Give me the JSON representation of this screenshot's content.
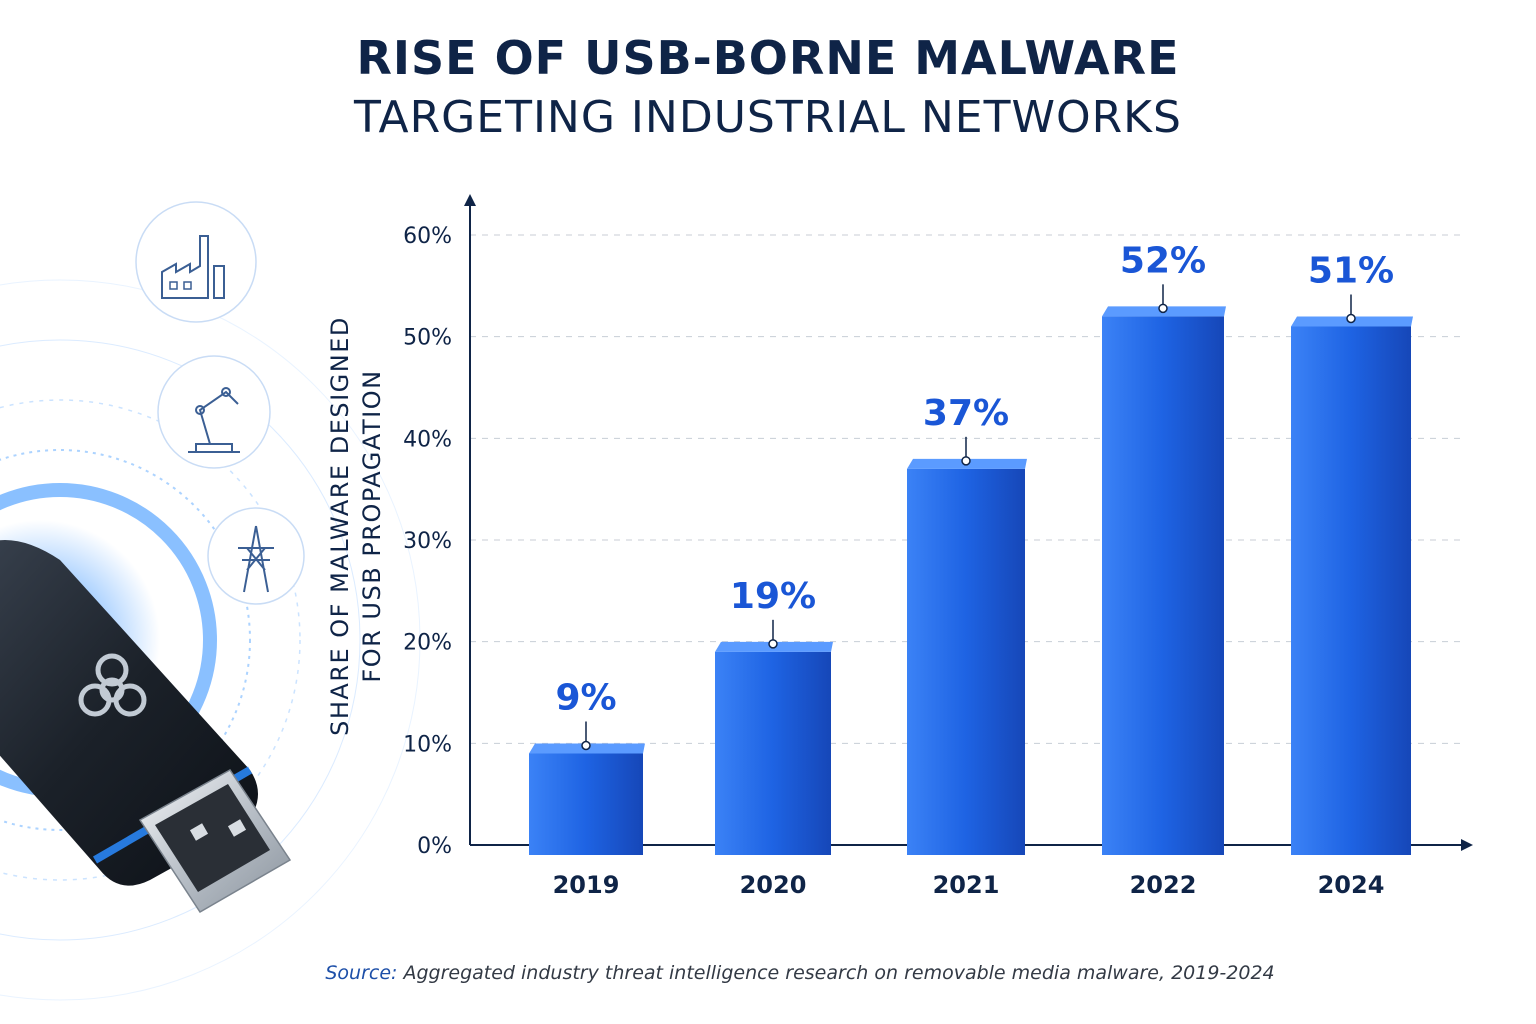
{
  "title_line1": "RISE OF USB-BORNE MALWARE",
  "title_line2": "TARGETING INDUSTRIAL NETWORKS",
  "source_label": "Source:",
  "source_text": "Aggregated industry threat intelligence research on removable media malware, 2019-2024",
  "icons": [
    "factory-icon",
    "robot-arm-icon",
    "power-tower-icon",
    "usb-drive-icon",
    "biohazard-icon"
  ],
  "colors": {
    "title": "#0f2447",
    "bar": "#1e63e3",
    "value_label": "#1a56d6",
    "axis": "#0f2447"
  },
  "chart_data": {
    "type": "bar",
    "categories": [
      "2019",
      "2020",
      "2021",
      "2022",
      "2024"
    ],
    "values": [
      9,
      19,
      37,
      52,
      51
    ],
    "value_labels": [
      "9%",
      "19%",
      "37%",
      "52%",
      "51%"
    ],
    "ylabel_line1": "SHARE OF MALWARE DESIGNED",
    "ylabel_line2": "FOR USB PROPAGATION",
    "xlabel": "",
    "yticks": [
      "0%",
      "10%",
      "20%",
      "30%",
      "40%",
      "50%",
      "60%"
    ],
    "ylim": [
      0,
      60
    ],
    "grid": true
  }
}
